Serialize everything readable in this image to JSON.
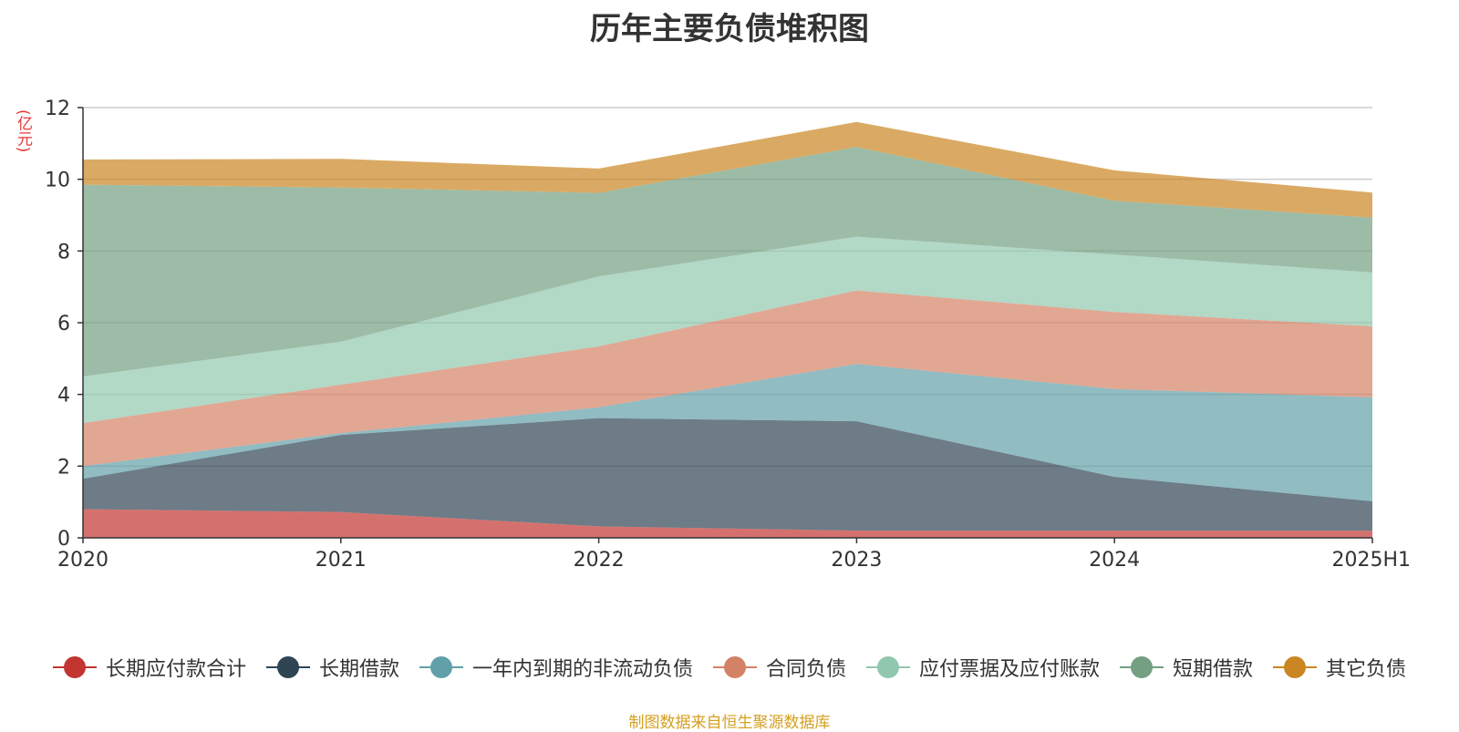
{
  "chart_data": {
    "type": "area",
    "stacked": true,
    "title": "历年主要负债堆积图",
    "y_unit": "(亿元)",
    "categories": [
      "2020",
      "2021",
      "2022",
      "2023",
      "2024",
      "2025H1"
    ],
    "ylim": [
      0,
      12
    ],
    "yticks": [
      "0",
      "2",
      "4",
      "6",
      "8",
      "10",
      "12"
    ],
    "grid": true,
    "legend_position": "bottom",
    "series": [
      {
        "name": "长期应付款合计",
        "color": "#c23531",
        "values": [
          0.8,
          0.72,
          0.32,
          0.2,
          0.2,
          0.2
        ]
      },
      {
        "name": "长期借款",
        "color": "#2f4554",
        "values": [
          0.85,
          2.15,
          3.02,
          3.05,
          1.5,
          0.82
        ]
      },
      {
        "name": "一年内到期的非流动负债",
        "color": "#61a0a8",
        "values": [
          0.35,
          0.05,
          0.3,
          1.6,
          2.45,
          2.9
        ]
      },
      {
        "name": "合同负债",
        "color": "#d48265",
        "values": [
          1.2,
          1.35,
          1.7,
          2.05,
          2.15,
          1.98
        ]
      },
      {
        "name": "应付票据及应付账款",
        "color": "#91c7ae",
        "values": [
          1.3,
          1.2,
          1.95,
          1.5,
          1.6,
          1.5
        ]
      },
      {
        "name": "短期借款",
        "color": "#749f83",
        "values": [
          5.35,
          4.3,
          2.33,
          2.5,
          1.5,
          1.53
        ]
      },
      {
        "name": "其它负债",
        "color": "#ca8622",
        "values": [
          0.7,
          0.8,
          0.68,
          0.7,
          0.85,
          0.7
        ]
      }
    ]
  },
  "source_note": "制图数据来自恒生聚源数据库"
}
